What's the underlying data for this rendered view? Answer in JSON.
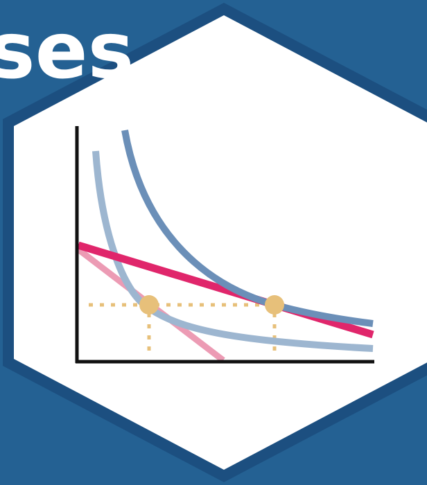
{
  "logo": {
    "title_fragment": "ses",
    "colors": {
      "background": "#246193",
      "hex_border": "#1c4f80",
      "hex_fill": "#ffffff",
      "axes": "#111111",
      "budget_line_new": "#e0266b",
      "budget_line_old": "#ec9bb4",
      "indifference_high": "#6b8fb8",
      "indifference_low": "#9db6d0",
      "equilibrium_point": "#e7c07a",
      "guide_lines": "#e7c07a"
    },
    "illustration": {
      "axes": [
        "y-axis",
        "x-axis"
      ],
      "curves": [
        "indifference-curve-high",
        "indifference-curve-low"
      ],
      "lines": [
        "budget-line-new",
        "budget-line-old"
      ],
      "points": [
        "equilibrium-point-1",
        "equilibrium-point-2"
      ]
    }
  }
}
